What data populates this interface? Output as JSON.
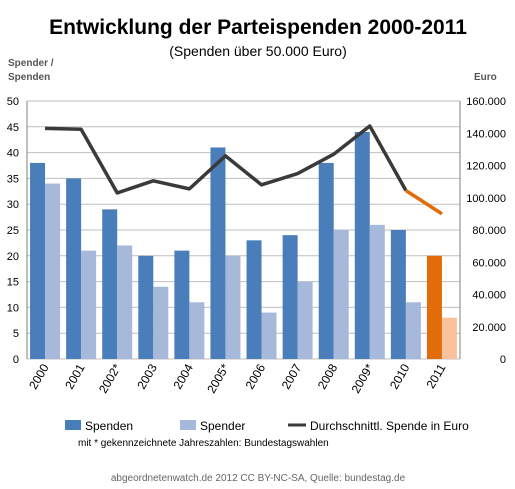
{
  "chart_data": {
    "type": "bar",
    "title": "Entwicklung der Parteispenden 2000-2011",
    "subtitle": "(Spenden über 50.000 Euro)",
    "ylabel_left": [
      "Spender /",
      "Spenden"
    ],
    "ylabel_right": "Euro",
    "categories": [
      "2000",
      "2001",
      "2002*",
      "2003",
      "2004",
      "2005*",
      "2006",
      "2007",
      "2008",
      "2009*",
      "2010",
      "2011"
    ],
    "ylim_left": [
      0,
      50
    ],
    "ylim_right": [
      0,
      160000
    ],
    "left_ticks": [
      "0",
      "5",
      "10",
      "15",
      "20",
      "25",
      "30",
      "35",
      "40",
      "45",
      "50"
    ],
    "right_ticks": [
      "0",
      "20.000",
      "40.000",
      "60.000",
      "80.000",
      "100.000",
      "120.000",
      "140.000",
      "160.000"
    ],
    "series": [
      {
        "name": "Spenden",
        "type": "bar",
        "axis": "left",
        "values": [
          38,
          35,
          29,
          20,
          21,
          41,
          23,
          24,
          38,
          44,
          25,
          20
        ]
      },
      {
        "name": "Spender",
        "type": "bar",
        "axis": "left",
        "values": [
          34,
          21,
          22,
          14,
          11,
          20,
          9,
          15,
          25,
          26,
          11,
          8
        ]
      },
      {
        "name": "Durchschnittl. Spende in Euro",
        "type": "line",
        "axis": "right",
        "values": [
          143000,
          142500,
          103000,
          110500,
          105500,
          126000,
          108000,
          115000,
          127000,
          144500,
          104500,
          90000
        ]
      }
    ],
    "colors": {
      "spenden": "#4a7ebb",
      "spender": "#a7b9da",
      "line": "#3a3a3a",
      "highlight_bar": "#e36c0a",
      "highlight_bar_light": "#f9c29a",
      "highlight_line": "#e36c0a"
    },
    "highlight_from_index": 10,
    "grid": true,
    "legend_position": "bottom"
  },
  "note": "mit * gekennzeichnete Jahreszahlen: Bundestagswahlen",
  "footer": "abgeordnetenwatch.de 2012 CC BY-NC-SA, Quelle: bundestag.de"
}
